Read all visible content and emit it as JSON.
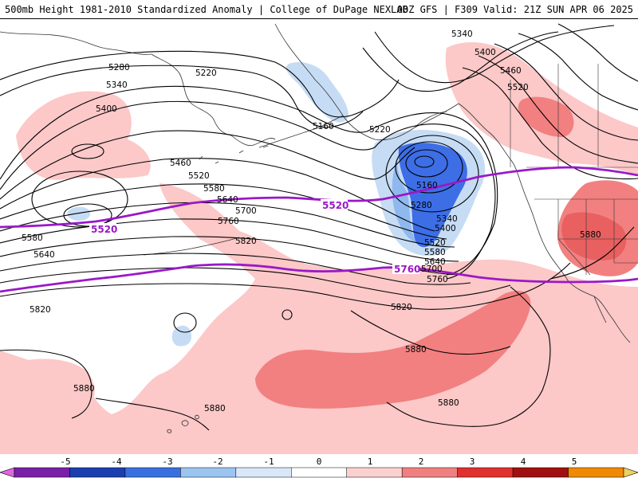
{
  "header": {
    "left_title": "500mb Height 1981-2010 Standardized Anomaly | College of DuPage NEXLAB",
    "right_title": "00Z GFS | F309 Valid: 21Z SUN APR 06 2025"
  },
  "contour_labels": {
    "c5340_ne": "5340",
    "c5400_ne": "5400",
    "c5460_ne": "5460",
    "c5520_ne": "5520",
    "c5280_nw": "5280",
    "c5220_n": "5220",
    "c5340_nw": "5340",
    "c5400_nw": "5400",
    "c5160_n": "5160",
    "c5220_c": "5220",
    "c5460_w": "5460",
    "c5520_w": "5520",
    "c5580_w": "5580",
    "c5640_w": "5640",
    "c5700_w": "5700",
    "c5760_w": "5760",
    "c5820_w": "5820",
    "c5580_far_w": "5580",
    "c5640_far_w": "5640",
    "c5820_far_w": "5820",
    "c5160_low": "5160",
    "c5280_low": "5280",
    "c5340_low": "5340",
    "c5400_low": "5400",
    "c5520_low": "5520",
    "c5580_low": "5580",
    "c5640_low": "5640",
    "c5700_low": "5700",
    "c5760_low": "5760",
    "c5820_c": "5820",
    "c5880_c": "5880",
    "c5880_sw": "5880",
    "c5880_s": "5880",
    "c5880_s2": "5880",
    "c5880_e": "5880"
  },
  "thick_labels": {
    "t5520_c": "5520",
    "t5520_w": "5520",
    "t5760_c": "5760"
  },
  "colorbar": {
    "ticks": [
      "-5",
      "-4",
      "-3",
      "-2",
      "-1",
      "0",
      "1",
      "2",
      "3",
      "4",
      "5"
    ],
    "colors": [
      "#e066e0",
      "#7a1fa8",
      "#1c3fb0",
      "#3a6fe0",
      "#9cc4f0",
      "#d8e8fa",
      "#ffffff",
      "#fbd0d0",
      "#f08080",
      "#e03030",
      "#a01010",
      "#f08a00",
      "#f0d060"
    ]
  },
  "palette": {
    "neg_light": "#c6dcf4",
    "neg_mid": "#8fb8ee",
    "neg_strong": "#3d6ee6",
    "pos_light": "#fcc8c8",
    "pos_mid": "#f28080",
    "pos_strong": "#e04a4a",
    "thickness_line": "#9a18c8",
    "contour": "#000000",
    "coast": "#333333"
  }
}
